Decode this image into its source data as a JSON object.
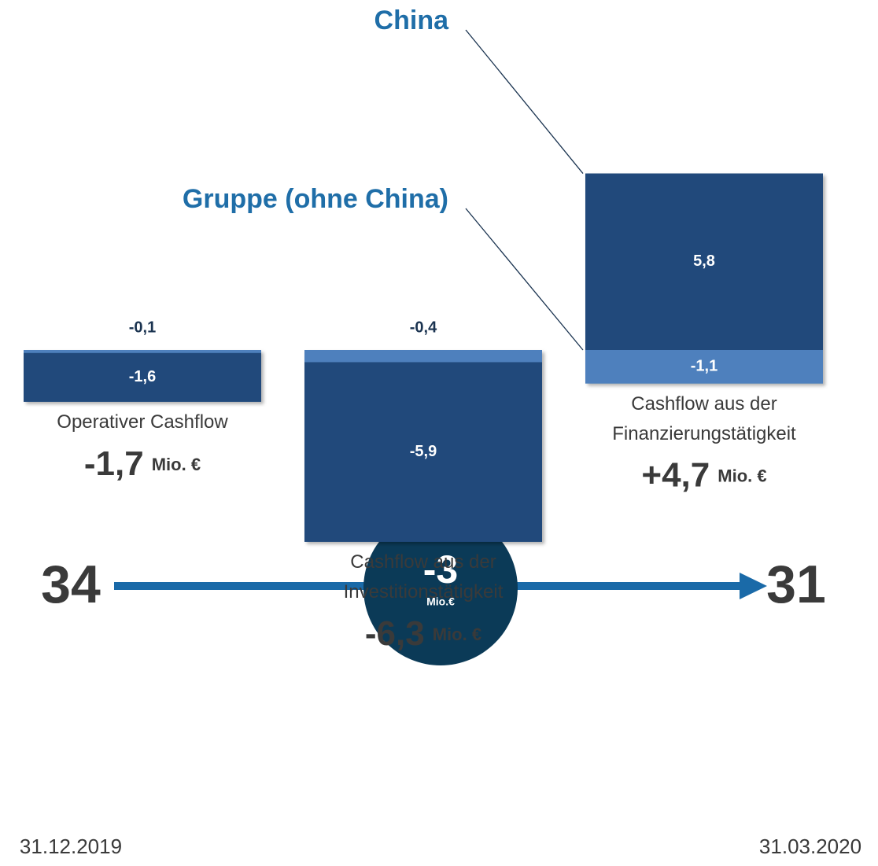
{
  "chart_data": {
    "type": "stacked-bar",
    "categories": [
      [
        "Operativer Cashflow"
      ],
      [
        "Cashflow aus der",
        "Investitionstätigkeit"
      ],
      [
        "Cashflow aus der",
        "Finanzierungstätigkeit"
      ]
    ],
    "series": [
      {
        "name": "China",
        "colors": [
          "#4e80bd",
          "#4e80bd",
          "#21497b"
        ],
        "values": [
          -0.1,
          -0.4,
          5.8
        ],
        "value_labels": [
          "-0,1",
          "-0,4",
          "5,8"
        ]
      },
      {
        "name": "Gruppe (ohne China)",
        "colors": [
          "#21497b",
          "#21497b",
          "#4e80bd"
        ],
        "values": [
          -1.6,
          -5.9,
          -1.1
        ],
        "value_labels": [
          "-1,6",
          "-5,9",
          "-1,1"
        ]
      }
    ],
    "totals": [
      -1.7,
      -6.3,
      4.7
    ],
    "total_labels": [
      "-1,7",
      "-6,3",
      "+4,7"
    ],
    "unit": "Mio. €",
    "bridge": {
      "start": 34,
      "end": 31,
      "change": -3,
      "change_unit": "Mio.€",
      "start_date": "31.12.2019",
      "end_date": "31.03.2020"
    }
  }
}
